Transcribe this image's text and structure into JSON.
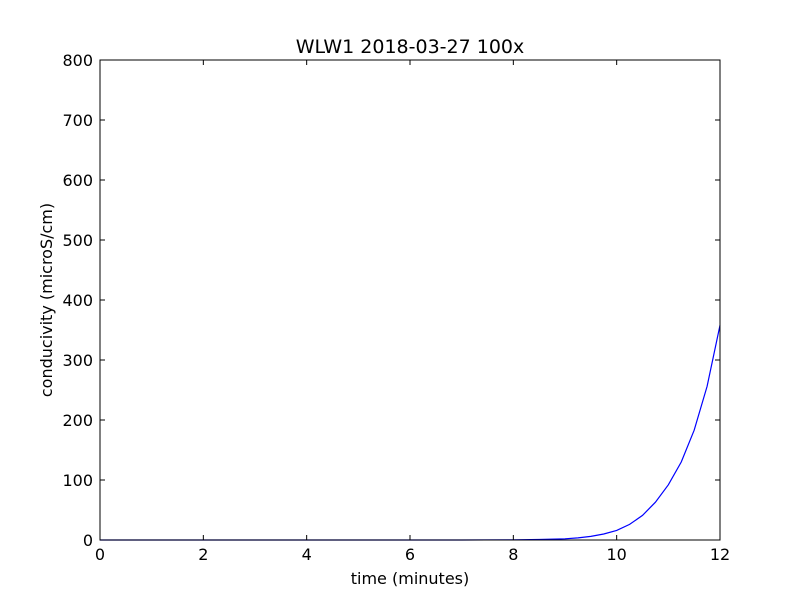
{
  "chart_data": {
    "type": "line",
    "title": "WLW1 2018-03-27 100x",
    "xlabel": "time (minutes)",
    "ylabel": "conducivity (microS/cm)",
    "xlim": [
      0,
      12
    ],
    "ylim": [
      0,
      800
    ],
    "xticks": [
      0,
      2,
      4,
      6,
      8,
      10,
      12
    ],
    "yticks": [
      0,
      100,
      200,
      300,
      400,
      500,
      600,
      700,
      800
    ],
    "grid": false,
    "legend": "none",
    "series": [
      {
        "color": "#0000ff",
        "x": [
          0,
          1,
          2,
          3,
          4,
          5,
          6,
          7,
          8,
          8.5,
          9,
          9.25,
          9.5,
          9.75,
          10,
          10.25,
          10.5,
          10.75,
          11,
          11.25,
          11.5,
          11.75,
          12
        ],
        "y": [
          0,
          0,
          0,
          0,
          0,
          0,
          0,
          0,
          0.3,
          0.8,
          2,
          3.5,
          6,
          10,
          16,
          26,
          41,
          63,
          92,
          130,
          183,
          256,
          358
        ]
      }
    ]
  }
}
